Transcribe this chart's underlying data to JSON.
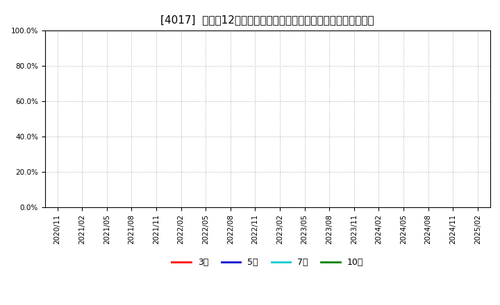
{
  "title": "[4017]  売上高12か月移動合計の対前年同期増減率の平均値の推移",
  "ylim": [
    0.0,
    1.0
  ],
  "yticks": [
    0.0,
    0.2,
    0.4,
    0.6,
    0.8,
    1.0
  ],
  "ytick_labels": [
    "0.0%",
    "20.0%",
    "40.0%",
    "60.0%",
    "80.0%",
    "100.0%"
  ],
  "xtick_labels": [
    "2020/11",
    "2021/02",
    "2021/05",
    "2021/08",
    "2021/11",
    "2022/02",
    "2022/05",
    "2022/08",
    "2022/11",
    "2023/02",
    "2023/05",
    "2023/08",
    "2023/11",
    "2024/02",
    "2024/05",
    "2024/08",
    "2024/11",
    "2025/02"
  ],
  "legend_entries": [
    {
      "label": "3年",
      "color": "#ff0000"
    },
    {
      "label": "5年",
      "color": "#0000cc"
    },
    {
      "label": "7年",
      "color": "#00cccc"
    },
    {
      "label": "10年",
      "color": "#008000"
    }
  ],
  "background_color": "#ffffff",
  "grid_color": "#aaaaaa",
  "title_fontsize": 11,
  "tick_fontsize": 7.5,
  "legend_fontsize": 9
}
